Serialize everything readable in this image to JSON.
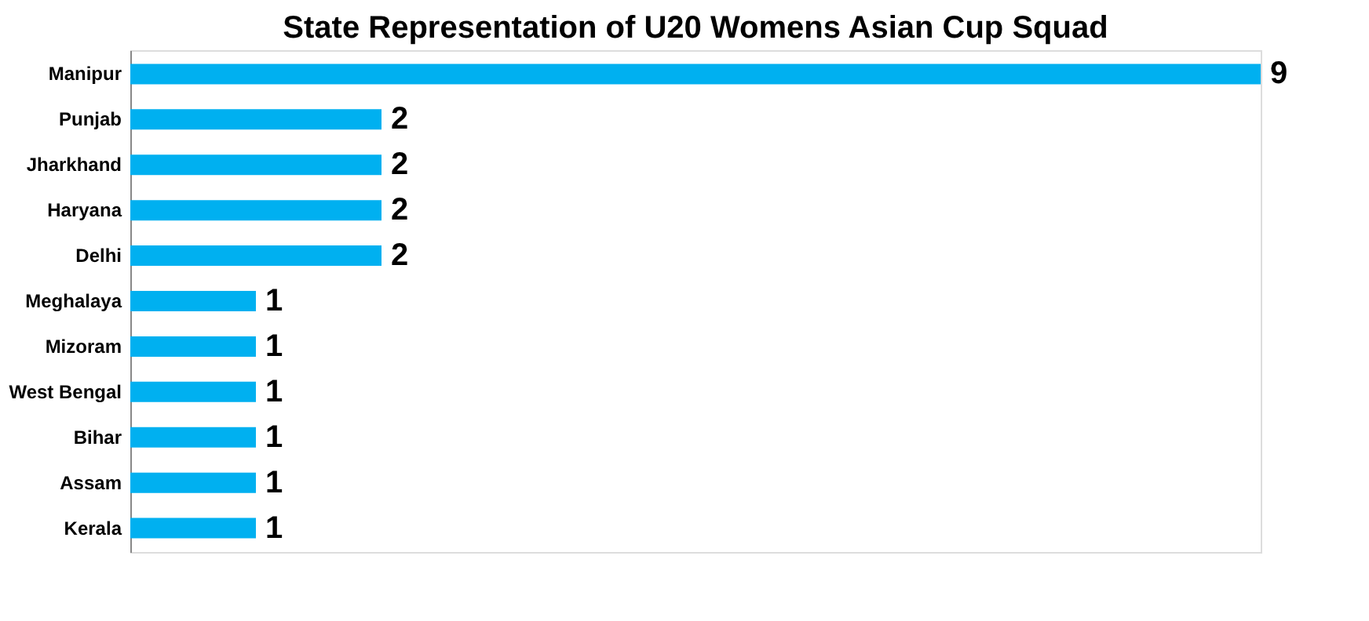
{
  "chart_data": {
    "type": "bar",
    "orientation": "horizontal",
    "title": "State Representation of U20 Womens Asian Cup Squad",
    "categories": [
      "Manipur",
      "Punjab",
      "Jharkhand",
      "Haryana",
      "Delhi",
      "Meghalaya",
      "Mizoram",
      "West Bengal",
      "Bihar",
      "Assam",
      "Kerala"
    ],
    "values": [
      9,
      2,
      2,
      2,
      2,
      1,
      1,
      1,
      1,
      1,
      1
    ],
    "color": "#00b0f0",
    "data_labels": true
  }
}
